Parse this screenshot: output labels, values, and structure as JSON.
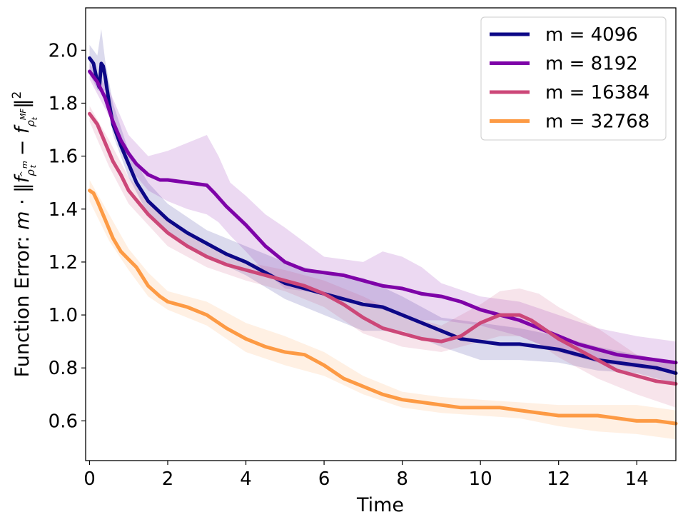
{
  "chart_data": {
    "type": "line",
    "title": "",
    "xlabel": "Time",
    "ylabel_prefix": "Function Error: ",
    "ylabel_m": "m",
    "ylabel_dot": " · ",
    "ylabel_norm_open": "‖",
    "ylabel_f": "f",
    "ylabel_rho": "ρ",
    "ylabel_hat": "^",
    "ylabel_sup_m": "m",
    "ylabel_sub_t": "t",
    "ylabel_minus": " − ",
    "ylabel_sup_mf": "MF",
    "ylabel_norm_close": "‖",
    "ylabel_sq": "2",
    "xlim": [
      -0.1,
      15.0
    ],
    "ylim": [
      0.45,
      2.16
    ],
    "xticks": [
      0,
      2,
      4,
      6,
      8,
      10,
      12,
      14
    ],
    "yticks": [
      0.6,
      0.8,
      1.0,
      1.2,
      1.4,
      1.6,
      1.8,
      2.0
    ],
    "xtick_labels": [
      "0",
      "2",
      "4",
      "6",
      "8",
      "10",
      "12",
      "14"
    ],
    "ytick_labels": [
      "0.6",
      "0.8",
      "1.0",
      "1.2",
      "1.4",
      "1.6",
      "1.8",
      "2.0"
    ],
    "grid": false,
    "legend_position": "top-right",
    "series": [
      {
        "name": "m = 4096",
        "color": "#0d0887",
        "x": [
          0,
          0.1,
          0.2,
          0.25,
          0.3,
          0.35,
          0.4,
          0.5,
          0.6,
          0.8,
          1.0,
          1.2,
          1.5,
          2.0,
          2.5,
          3.0,
          3.5,
          4.0,
          4.5,
          5.0,
          5.5,
          6.0,
          6.5,
          7.0,
          7.5,
          8.0,
          8.5,
          9.0,
          9.5,
          10.0,
          10.5,
          11.0,
          11.5,
          12.0,
          12.5,
          13.0,
          13.5,
          14.0,
          14.5,
          15.0
        ],
        "y": [
          1.97,
          1.95,
          1.88,
          1.86,
          1.95,
          1.94,
          1.9,
          1.8,
          1.72,
          1.64,
          1.57,
          1.5,
          1.43,
          1.36,
          1.31,
          1.27,
          1.23,
          1.2,
          1.16,
          1.12,
          1.1,
          1.08,
          1.06,
          1.04,
          1.03,
          1.0,
          0.97,
          0.94,
          0.91,
          0.9,
          0.89,
          0.89,
          0.88,
          0.87,
          0.85,
          0.83,
          0.82,
          0.81,
          0.8,
          0.78
        ],
        "band_x": [
          0,
          0.2,
          0.3,
          0.4,
          0.6,
          1.0,
          1.5,
          2.0,
          3.0,
          4.0,
          5.0,
          6.0,
          7.0,
          8.0,
          9.0,
          10.0,
          11.0,
          12.0,
          13.0,
          14.0,
          15.0
        ],
        "band_upper": [
          2.02,
          1.98,
          2.08,
          1.96,
          1.8,
          1.62,
          1.5,
          1.42,
          1.32,
          1.26,
          1.2,
          1.16,
          1.14,
          1.07,
          0.99,
          0.97,
          0.95,
          0.92,
          0.88,
          0.85,
          0.82
        ],
        "band_lower": [
          1.91,
          1.85,
          1.84,
          1.85,
          1.68,
          1.52,
          1.38,
          1.31,
          1.22,
          1.15,
          1.06,
          1.0,
          0.94,
          0.94,
          0.88,
          0.83,
          0.83,
          0.82,
          0.79,
          0.78,
          0.74
        ]
      },
      {
        "name": "m = 8192",
        "color": "#7e03a8",
        "x": [
          0,
          0.2,
          0.4,
          0.6,
          0.8,
          1.0,
          1.2,
          1.5,
          1.8,
          2.0,
          2.5,
          3.0,
          3.2,
          3.5,
          4.0,
          4.5,
          5.0,
          5.5,
          6.0,
          6.5,
          7.0,
          7.5,
          8.0,
          8.5,
          9.0,
          9.5,
          10.0,
          10.5,
          11.0,
          11.5,
          12.0,
          12.5,
          13.0,
          13.5,
          14.0,
          14.5,
          15.0
        ],
        "y": [
          1.92,
          1.88,
          1.82,
          1.73,
          1.66,
          1.61,
          1.57,
          1.53,
          1.51,
          1.51,
          1.5,
          1.49,
          1.46,
          1.41,
          1.34,
          1.26,
          1.2,
          1.17,
          1.16,
          1.15,
          1.13,
          1.11,
          1.1,
          1.08,
          1.07,
          1.05,
          1.02,
          1.0,
          0.98,
          0.95,
          0.92,
          0.89,
          0.87,
          0.85,
          0.84,
          0.83,
          0.82
        ],
        "band_x": [
          0,
          0.5,
          1.0,
          1.5,
          2.0,
          2.5,
          3.0,
          3.3,
          3.6,
          4.0,
          4.5,
          5.0,
          6.0,
          7.0,
          7.5,
          8.0,
          8.5,
          9.0,
          10.0,
          11.0,
          12.0,
          13.0,
          14.0,
          15.0
        ],
        "band_upper": [
          1.95,
          1.85,
          1.68,
          1.6,
          1.62,
          1.65,
          1.68,
          1.6,
          1.5,
          1.45,
          1.38,
          1.33,
          1.22,
          1.2,
          1.24,
          1.22,
          1.18,
          1.12,
          1.07,
          1.05,
          1.0,
          0.95,
          0.92,
          0.9
        ],
        "band_lower": [
          1.89,
          1.75,
          1.56,
          1.47,
          1.43,
          1.4,
          1.38,
          1.35,
          1.3,
          1.24,
          1.16,
          1.1,
          1.08,
          1.05,
          1.02,
          1.0,
          0.98,
          0.98,
          0.96,
          0.92,
          0.86,
          0.82,
          0.8,
          0.78
        ]
      },
      {
        "name": "m = 16384",
        "color": "#cc4778",
        "x": [
          0,
          0.2,
          0.4,
          0.6,
          0.8,
          1.0,
          1.5,
          2.0,
          2.5,
          3.0,
          3.5,
          4.0,
          4.5,
          5.0,
          5.5,
          6.0,
          6.5,
          7.0,
          7.5,
          8.0,
          8.5,
          9.0,
          9.5,
          10.0,
          10.5,
          11.0,
          11.3,
          11.7,
          12.0,
          12.5,
          13.0,
          13.5,
          14.0,
          14.5,
          15.0
        ],
        "y": [
          1.76,
          1.72,
          1.65,
          1.58,
          1.53,
          1.47,
          1.38,
          1.31,
          1.26,
          1.22,
          1.19,
          1.17,
          1.15,
          1.13,
          1.11,
          1.08,
          1.04,
          0.99,
          0.95,
          0.93,
          0.91,
          0.9,
          0.92,
          0.97,
          1.0,
          1.0,
          0.98,
          0.94,
          0.91,
          0.87,
          0.83,
          0.79,
          0.77,
          0.75,
          0.74
        ],
        "band_x": [
          0,
          0.5,
          1.0,
          2.0,
          3.0,
          4.0,
          5.0,
          6.0,
          7.0,
          8.0,
          9.0,
          10.0,
          10.5,
          11.0,
          11.5,
          12.0,
          13.0,
          14.0,
          15.0
        ],
        "band_upper": [
          1.79,
          1.66,
          1.52,
          1.36,
          1.26,
          1.2,
          1.17,
          1.13,
          1.07,
          1.0,
          0.96,
          1.04,
          1.09,
          1.1,
          1.08,
          1.03,
          0.95,
          0.85,
          0.82
        ],
        "band_lower": [
          1.73,
          1.56,
          1.42,
          1.26,
          1.18,
          1.13,
          1.09,
          1.03,
          0.93,
          0.88,
          0.86,
          0.9,
          0.92,
          0.92,
          0.89,
          0.84,
          0.76,
          0.7,
          0.65
        ]
      },
      {
        "name": "m = 32768",
        "color": "#fd9a44",
        "x": [
          0,
          0.1,
          0.2,
          0.4,
          0.6,
          0.8,
          1.0,
          1.2,
          1.5,
          1.8,
          2.0,
          2.5,
          3.0,
          3.5,
          4.0,
          4.5,
          5.0,
          5.5,
          6.0,
          6.5,
          7.0,
          7.5,
          8.0,
          8.5,
          9.0,
          9.5,
          10.0,
          10.5,
          11.0,
          11.5,
          12.0,
          12.5,
          13.0,
          13.5,
          14.0,
          14.5,
          15.0
        ],
        "y": [
          1.47,
          1.46,
          1.43,
          1.36,
          1.29,
          1.24,
          1.21,
          1.18,
          1.11,
          1.07,
          1.05,
          1.03,
          1.0,
          0.95,
          0.91,
          0.88,
          0.86,
          0.85,
          0.81,
          0.76,
          0.73,
          0.7,
          0.68,
          0.67,
          0.66,
          0.65,
          0.65,
          0.65,
          0.64,
          0.63,
          0.62,
          0.62,
          0.62,
          0.61,
          0.6,
          0.6,
          0.59
        ],
        "band_x": [
          0,
          0.5,
          1.0,
          1.5,
          2.0,
          3.0,
          4.0,
          5.0,
          6.0,
          7.0,
          8.0,
          9.0,
          10.0,
          11.0,
          12.0,
          13.0,
          14.0,
          15.0
        ],
        "band_upper": [
          1.51,
          1.38,
          1.25,
          1.16,
          1.09,
          1.05,
          0.97,
          0.92,
          0.86,
          0.77,
          0.71,
          0.69,
          0.68,
          0.67,
          0.66,
          0.66,
          0.66,
          0.64
        ],
        "band_lower": [
          1.43,
          1.28,
          1.17,
          1.07,
          1.02,
          0.96,
          0.86,
          0.81,
          0.77,
          0.7,
          0.65,
          0.63,
          0.62,
          0.61,
          0.58,
          0.56,
          0.55,
          0.53
        ]
      }
    ]
  }
}
